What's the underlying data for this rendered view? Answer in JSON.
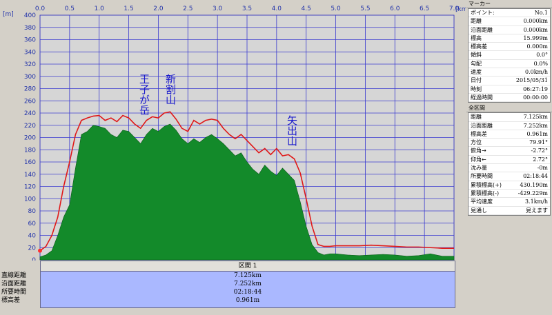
{
  "chart_data": {
    "type": "area",
    "xlabel": "",
    "ylabel": "",
    "x_unit": "[km]",
    "y_unit": "[m]",
    "xlim": [
      0,
      7.0
    ],
    "ylim": [
      0,
      400
    ],
    "x_ticks": [
      "0.0",
      "0.5",
      "1.0",
      "1.5",
      "2.0",
      "2.5",
      "3.0",
      "3.5",
      "4.0",
      "4.5",
      "5.0",
      "5.5",
      "6.0",
      "6.5",
      "7.0"
    ],
    "y_ticks": [
      "0",
      "20",
      "40",
      "60",
      "80",
      "100",
      "120",
      "140",
      "160",
      "180",
      "200",
      "220",
      "240",
      "260",
      "280",
      "300",
      "320",
      "340",
      "360",
      "380",
      "400"
    ],
    "grid": true,
    "series": [
      {
        "color": "#138a2a",
        "x": [
          0,
          0.1,
          0.2,
          0.3,
          0.4,
          0.5,
          0.6,
          0.7,
          0.8,
          0.9,
          1.0,
          1.1,
          1.2,
          1.3,
          1.4,
          1.5,
          1.6,
          1.7,
          1.8,
          1.9,
          2.0,
          2.1,
          2.2,
          2.3,
          2.4,
          2.5,
          2.6,
          2.7,
          2.8,
          2.9,
          3.0,
          3.1,
          3.2,
          3.3,
          3.4,
          3.5,
          3.6,
          3.7,
          3.8,
          3.9,
          4.0,
          4.1,
          4.2,
          4.3,
          4.4,
          4.5,
          4.6,
          4.7,
          4.8,
          4.9,
          5.0,
          5.2,
          5.4,
          5.6,
          5.8,
          6.0,
          6.2,
          6.4,
          6.6,
          6.8,
          7.0
        ],
        "values": [
          5,
          8,
          15,
          40,
          70,
          90,
          150,
          205,
          210,
          220,
          218,
          215,
          205,
          200,
          212,
          210,
          200,
          190,
          205,
          215,
          210,
          218,
          222,
          212,
          198,
          190,
          198,
          192,
          200,
          205,
          198,
          190,
          180,
          170,
          175,
          160,
          148,
          140,
          155,
          145,
          138,
          150,
          140,
          130,
          95,
          55,
          25,
          12,
          8,
          10,
          10,
          8,
          7,
          8,
          9,
          8,
          6,
          7,
          10,
          6,
          6
        ]
      },
      {
        "color": "#e01818",
        "x": [
          0,
          0.1,
          0.2,
          0.3,
          0.4,
          0.5,
          0.6,
          0.7,
          0.8,
          0.9,
          1.0,
          1.1,
          1.2,
          1.3,
          1.4,
          1.5,
          1.6,
          1.7,
          1.8,
          1.9,
          2.0,
          2.1,
          2.2,
          2.3,
          2.4,
          2.5,
          2.6,
          2.7,
          2.8,
          2.9,
          3.0,
          3.1,
          3.2,
          3.3,
          3.4,
          3.5,
          3.6,
          3.7,
          3.8,
          3.9,
          4.0,
          4.1,
          4.2,
          4.3,
          4.4,
          4.5,
          4.6,
          4.7,
          4.8,
          4.9,
          5.0,
          5.2,
          5.4,
          5.6,
          5.8,
          6.0,
          6.2,
          6.4,
          6.6,
          6.8,
          7.0
        ],
        "values": [
          15,
          22,
          40,
          70,
          120,
          160,
          205,
          228,
          232,
          235,
          236,
          228,
          232,
          226,
          236,
          232,
          222,
          215,
          228,
          234,
          232,
          240,
          242,
          230,
          215,
          210,
          228,
          222,
          228,
          230,
          228,
          215,
          205,
          198,
          205,
          195,
          185,
          175,
          182,
          172,
          182,
          170,
          172,
          165,
          142,
          100,
          55,
          25,
          22,
          22,
          23,
          23,
          23,
          24,
          23,
          22,
          21,
          21,
          20,
          19,
          19
        ]
      }
    ],
    "annotations": [
      "王子が岳",
      "新割山",
      "矢出山"
    ]
  },
  "section": {
    "title": "区間 1",
    "row_labels": [
      "直線距離",
      "沿面距離",
      "所要時間",
      "標高差"
    ],
    "values": [
      "7.125km",
      "7.252km",
      "02:18:44",
      "0.961m"
    ]
  },
  "marker_panel": {
    "title": "マーカー",
    "rows": [
      {
        "label": "ポイント:",
        "value": "No.1"
      },
      {
        "label": "距離",
        "value": "0.000km"
      },
      {
        "label": "沿面距離",
        "value": "0.000km"
      },
      {
        "label": "標高",
        "value": "15.999m"
      },
      {
        "label": "標高差",
        "value": "0.000m"
      },
      {
        "label": "傾斜",
        "value": "0.0°"
      },
      {
        "label": "勾配",
        "value": "0.0%"
      },
      {
        "label": "速度",
        "value": "0.0km/h"
      },
      {
        "label": "日付",
        "value": "2015/05/31"
      },
      {
        "label": "時刻",
        "value": "06:27:19"
      },
      {
        "label": "経過時間",
        "value": "00:00:00"
      }
    ]
  },
  "range_panel": {
    "title": "全区間",
    "rows": [
      {
        "label": "距離",
        "value": "7.125km"
      },
      {
        "label": "沿面距離",
        "value": "7.252km"
      },
      {
        "label": "標高差",
        "value": "0.961m"
      },
      {
        "label": "方位",
        "value": "79.91°"
      },
      {
        "label": "俯角→",
        "value": "-2.72°"
      },
      {
        "label": "仰角←",
        "value": "2.72°"
      },
      {
        "label": "沈み量",
        "value": "-0m"
      },
      {
        "label": "所要時間",
        "value": "02:18:44"
      },
      {
        "label": "累積標高(+)",
        "value": "430.190m"
      },
      {
        "label": "累積標高(-)",
        "value": "-429.229m"
      },
      {
        "label": "平均速度",
        "value": "3.1km/h"
      },
      {
        "label": "見通し",
        "value": "見えます"
      }
    ]
  }
}
